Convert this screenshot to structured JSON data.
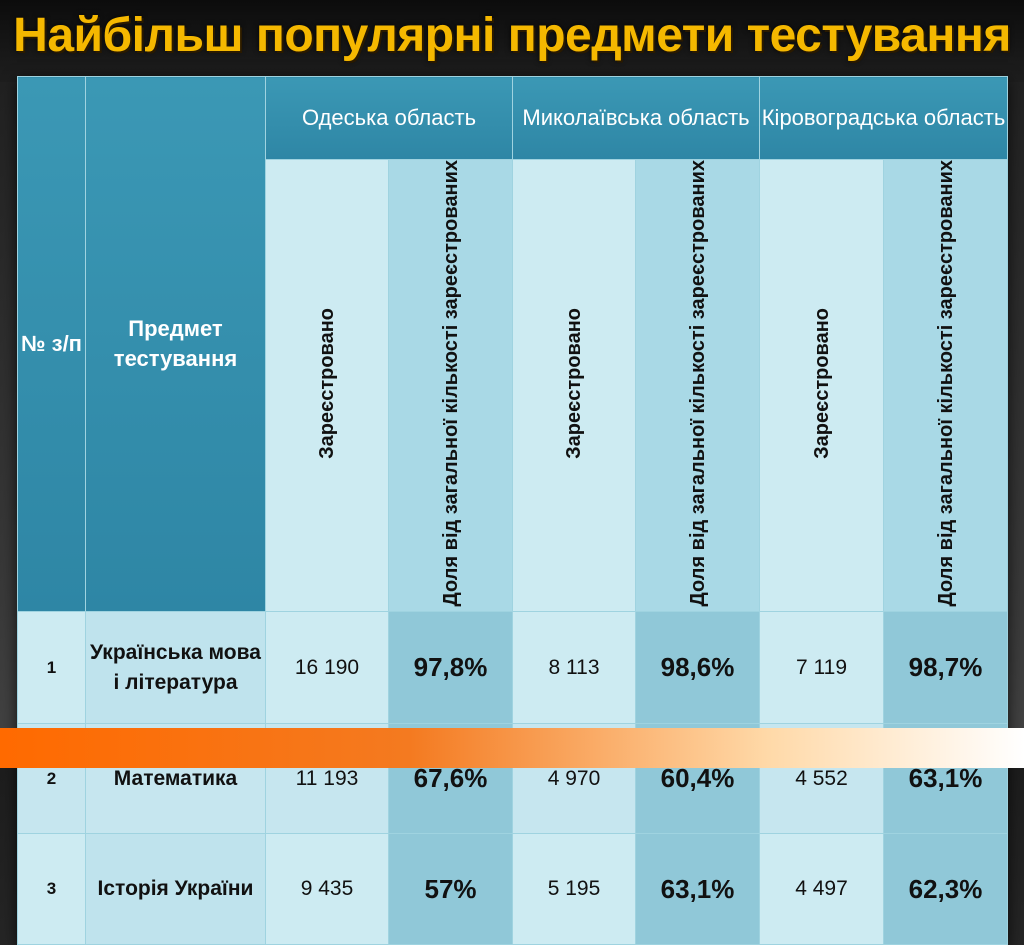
{
  "title": "Найбільш популярні предмети тестування",
  "table": {
    "col_num": "№ з/п",
    "col_subject": "Предмет тестування",
    "regions": [
      "Одеська область",
      "Миколаївська область",
      "Кіровоградська область"
    ],
    "sub_registered": "Зареєстровано",
    "sub_share": "Доля від загальної кількості зареєстрованих",
    "rows": [
      {
        "num": "1",
        "subject": "Українська мова і література",
        "values": [
          "16 190",
          "97,8%",
          "8 113",
          "98,6%",
          "7 119",
          "98,7%"
        ]
      },
      {
        "num": "2",
        "subject": "Математика",
        "values": [
          "11 193",
          "67,6%",
          "4 970",
          "60,4%",
          "4 552",
          "63,1%"
        ]
      },
      {
        "num": "3",
        "subject": "Історія України",
        "values": [
          "9 435",
          "57%",
          "5 195",
          "63,1%",
          "4 497",
          "62,3%"
        ]
      }
    ]
  }
}
